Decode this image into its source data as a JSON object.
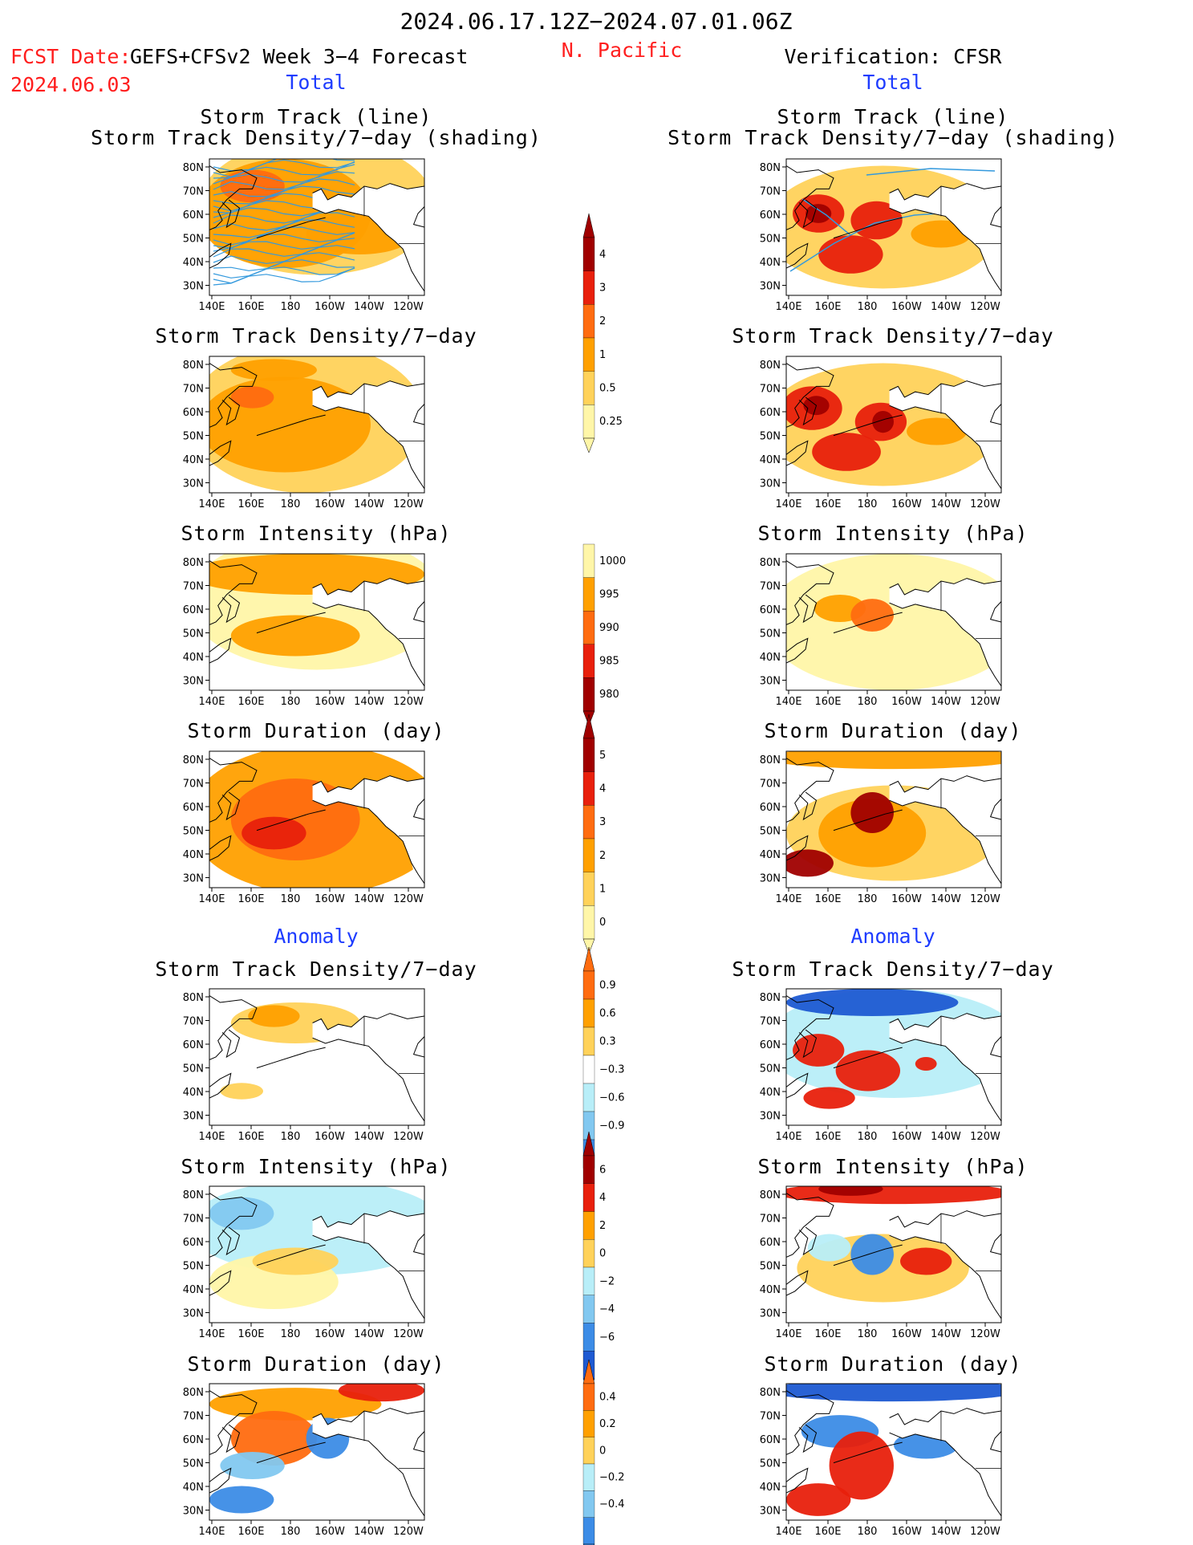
{
  "header": {
    "date_range": "2024.06.17.12Z−2024.07.01.06Z",
    "fcst_date_label": "FCST Date:",
    "fcst_model": "GEFS+CFSv2 Week 3−4 Forecast",
    "fcst_date": "2024.06.03",
    "region": "N. Pacific",
    "verification": "Verification: CFSR"
  },
  "section_labels": {
    "total": "Total",
    "anomaly": "Anomaly"
  },
  "panel_titles": {
    "storm_track_line": "Storm Track (line)",
    "storm_track_shading": "Storm Track Density/7−day (shading)",
    "density": "Storm Track Density/7−day",
    "intensity": "Storm Intensity (hPa)",
    "duration": "Storm Duration (day)"
  },
  "axes": {
    "lat_ticks": [
      "80N",
      "70N",
      "60N",
      "50N",
      "40N",
      "30N"
    ],
    "lon_ticks": [
      "140E",
      "160E",
      "180",
      "160W",
      "140W",
      "120W"
    ]
  },
  "colors": {
    "pale_yellow": "#fff6a8",
    "light_orange": "#ffd25a",
    "orange": "#ffa000",
    "dark_orange": "#ff6c10",
    "red": "#e8200c",
    "dark_red": "#a00000",
    "light_blue": "#b8eef8",
    "mid_blue": "#82c8f0",
    "blue": "#3c8ce6",
    "dark_blue": "#1e5ad2",
    "track_line": "#3399dd"
  },
  "colorbars": [
    {
      "id": "total-density",
      "labels": [
        "4",
        "3",
        "2",
        "1",
        "0.5",
        "0.25"
      ]
    },
    {
      "id": "total-intensity",
      "labels": [
        "1000",
        "995",
        "990",
        "985",
        "980"
      ]
    },
    {
      "id": "total-duration",
      "labels": [
        "5",
        "4",
        "3",
        "2",
        "1",
        "0"
      ]
    },
    {
      "id": "anom-density",
      "labels": [
        "0.9",
        "0.6",
        "0.3",
        "−0.3",
        "−0.6",
        "−0.9"
      ]
    },
    {
      "id": "anom-intensity",
      "labels": [
        "6",
        "4",
        "2",
        "0",
        "−2",
        "−4",
        "−6"
      ]
    },
    {
      "id": "anom-duration",
      "labels": [
        "0.4",
        "0.2",
        "0",
        "−0.2",
        "−0.4"
      ]
    }
  ]
}
